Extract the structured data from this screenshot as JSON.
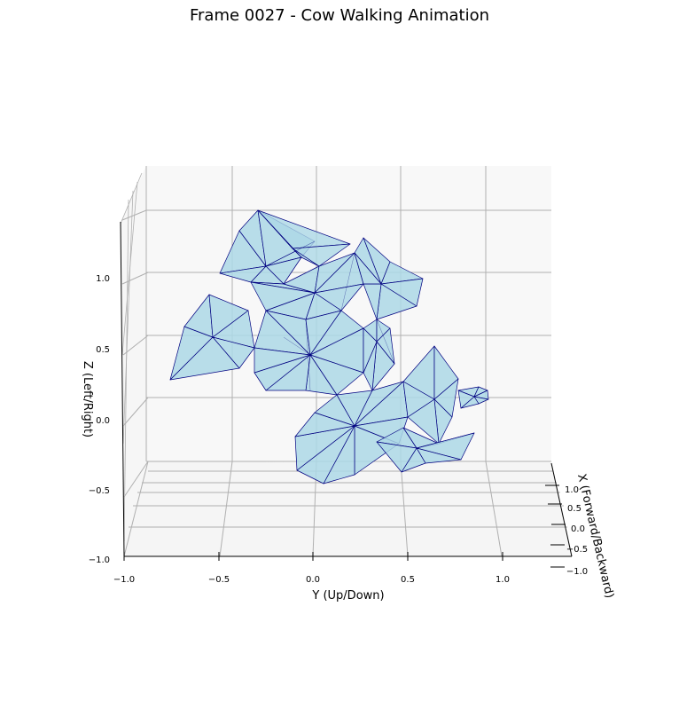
{
  "chart_data": {
    "type": "3d-mesh",
    "title": "Frame 0027 - Cow Walking Animation",
    "xlabel": "X (Forward/Backward)",
    "ylabel": "Y (Up/Down)",
    "zlabel": "Z (Left/Right)",
    "x_ticks": [
      "−1.0",
      "−0.5",
      "0.0",
      "0.5",
      "1.0"
    ],
    "y_ticks": [
      "−1.0",
      "−0.5",
      "0.0",
      "0.5",
      "1.0"
    ],
    "z_ticks": [
      "−1.0",
      "−0.5",
      "0.0",
      "0.5",
      "1.0"
    ],
    "face_color": "#add8e6",
    "edge_color": "#000080",
    "pane_color": "#f2f2f2",
    "grid_color": "#b0b0b0"
  }
}
